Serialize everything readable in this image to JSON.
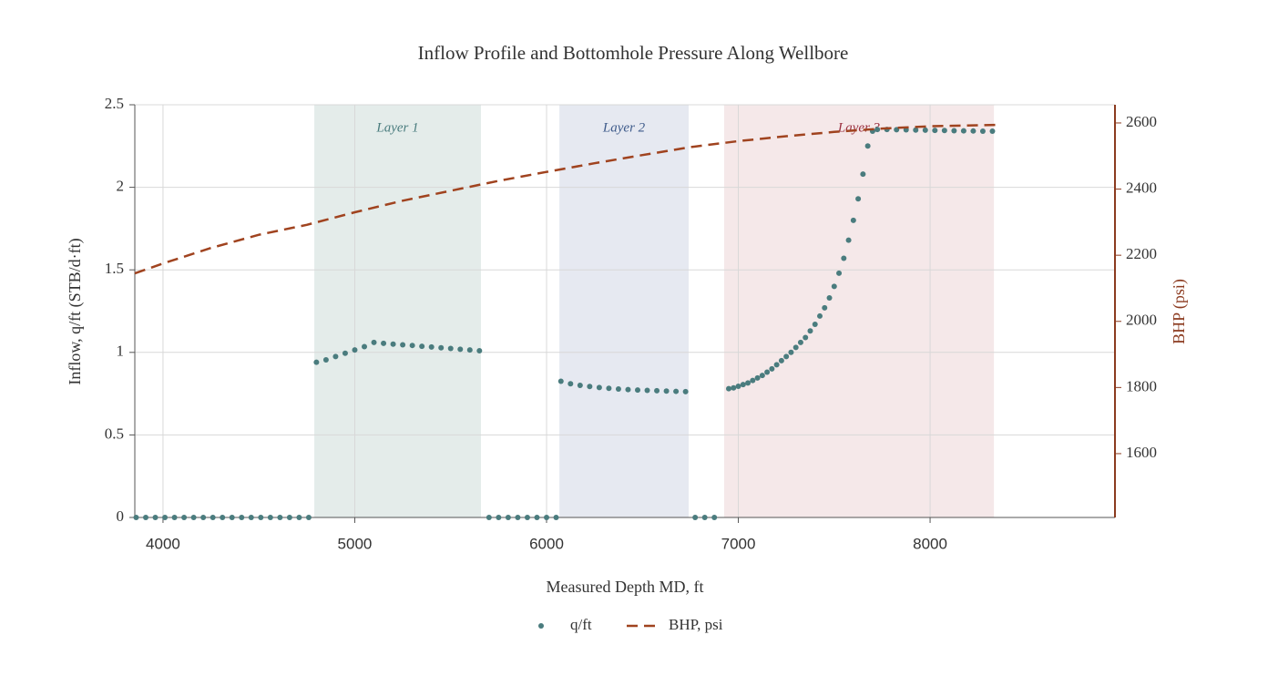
{
  "chart_data": {
    "type": "scatter",
    "title": "Inflow Profile and Bottomhole Pressure Along Wellbore",
    "xlabel": "Measured Depth MD, ft",
    "ylabel": "Inflow, q/ft (STB/d·ft)",
    "y2label": "BHP (psi)",
    "xlim": [
      3853,
      8964
    ],
    "ylim": [
      0,
      2.5
    ],
    "y2lim": [
      1407,
      2655
    ],
    "xticks": [
      4000,
      5000,
      6000,
      7000,
      8000
    ],
    "yticks": [
      0,
      0.5,
      1,
      1.5,
      2,
      2.5
    ],
    "y2ticks": [
      1600,
      1800,
      2000,
      2200,
      2400,
      2600
    ],
    "grid": true,
    "legend": "bottom",
    "layers": [
      {
        "label": "Layer 1",
        "x0": 4789,
        "x1": 5658,
        "color": "#e4ecea",
        "text_color": "#4a7c7e"
      },
      {
        "label": "Layer 2",
        "x0": 6067,
        "x1": 6741,
        "color": "#e6e9f1",
        "text_color": "#3d5a8a"
      },
      {
        "label": "Layer 3",
        "x0": 6926,
        "x1": 8333,
        "color": "#f5e8e9",
        "text_color": "#9b3040"
      }
    ],
    "series": [
      {
        "name": "q/ft",
        "color": "#4a7c7e",
        "mode": "markers",
        "x": [
          3860,
          3910,
          3960,
          4010,
          4060,
          4110,
          4160,
          4210,
          4260,
          4310,
          4360,
          4410,
          4460,
          4510,
          4560,
          4610,
          4660,
          4710,
          4760,
          4800,
          4850,
          4900,
          4950,
          5000,
          5050,
          5100,
          5150,
          5200,
          5250,
          5300,
          5350,
          5400,
          5450,
          5500,
          5550,
          5600,
          5650,
          5700,
          5750,
          5800,
          5850,
          5900,
          5950,
          6000,
          6050,
          6075,
          6125,
          6175,
          6225,
          6275,
          6325,
          6375,
          6425,
          6475,
          6525,
          6575,
          6625,
          6675,
          6725,
          6775,
          6825,
          6875,
          6950,
          6975,
          7000,
          7025,
          7050,
          7075,
          7100,
          7125,
          7150,
          7175,
          7200,
          7225,
          7250,
          7275,
          7300,
          7325,
          7350,
          7375,
          7400,
          7425,
          7450,
          7475,
          7500,
          7525,
          7550,
          7575,
          7600,
          7625,
          7650,
          7675,
          7700,
          7725,
          7775,
          7825,
          7875,
          7925,
          7975,
          8025,
          8075,
          8125,
          8175,
          8225,
          8275,
          8325
        ],
        "values": [
          0,
          0,
          0,
          0,
          0,
          0,
          0,
          0,
          0,
          0,
          0,
          0,
          0,
          0,
          0,
          0,
          0,
          0,
          0,
          0.94,
          0.955,
          0.975,
          0.995,
          1.015,
          1.035,
          1.06,
          1.055,
          1.05,
          1.046,
          1.042,
          1.037,
          1.033,
          1.028,
          1.024,
          1.019,
          1.015,
          1.01,
          0,
          0,
          0,
          0,
          0,
          0,
          0,
          0,
          0.825,
          0.81,
          0.8,
          0.793,
          0.787,
          0.782,
          0.778,
          0.775,
          0.772,
          0.77,
          0.768,
          0.766,
          0.764,
          0.762,
          0,
          0,
          0,
          0.78,
          0.785,
          0.795,
          0.805,
          0.815,
          0.83,
          0.845,
          0.86,
          0.88,
          0.9,
          0.925,
          0.95,
          0.975,
          1.0,
          1.03,
          1.06,
          1.09,
          1.13,
          1.17,
          1.22,
          1.27,
          1.33,
          1.4,
          1.48,
          1.57,
          1.68,
          1.8,
          1.93,
          2.08,
          2.25,
          2.34,
          2.35,
          2.35,
          2.349,
          2.348,
          2.347,
          2.346,
          2.345,
          2.344,
          2.343,
          2.342,
          2.341,
          2.34,
          2.34
        ]
      },
      {
        "name": "BHP, psi",
        "color": "#a0431f",
        "mode": "dash",
        "axis": "y2",
        "x": [
          3853,
          4000,
          4250,
          4500,
          4750,
          5000,
          5250,
          5500,
          5750,
          6000,
          6250,
          6500,
          6750,
          7000,
          7250,
          7500,
          7750,
          8000,
          8340
        ],
        "values": [
          2145,
          2175,
          2222,
          2262,
          2292,
          2330,
          2365,
          2395,
          2425,
          2452,
          2478,
          2503,
          2527,
          2545,
          2560,
          2573,
          2583,
          2590,
          2594
        ]
      }
    ]
  }
}
